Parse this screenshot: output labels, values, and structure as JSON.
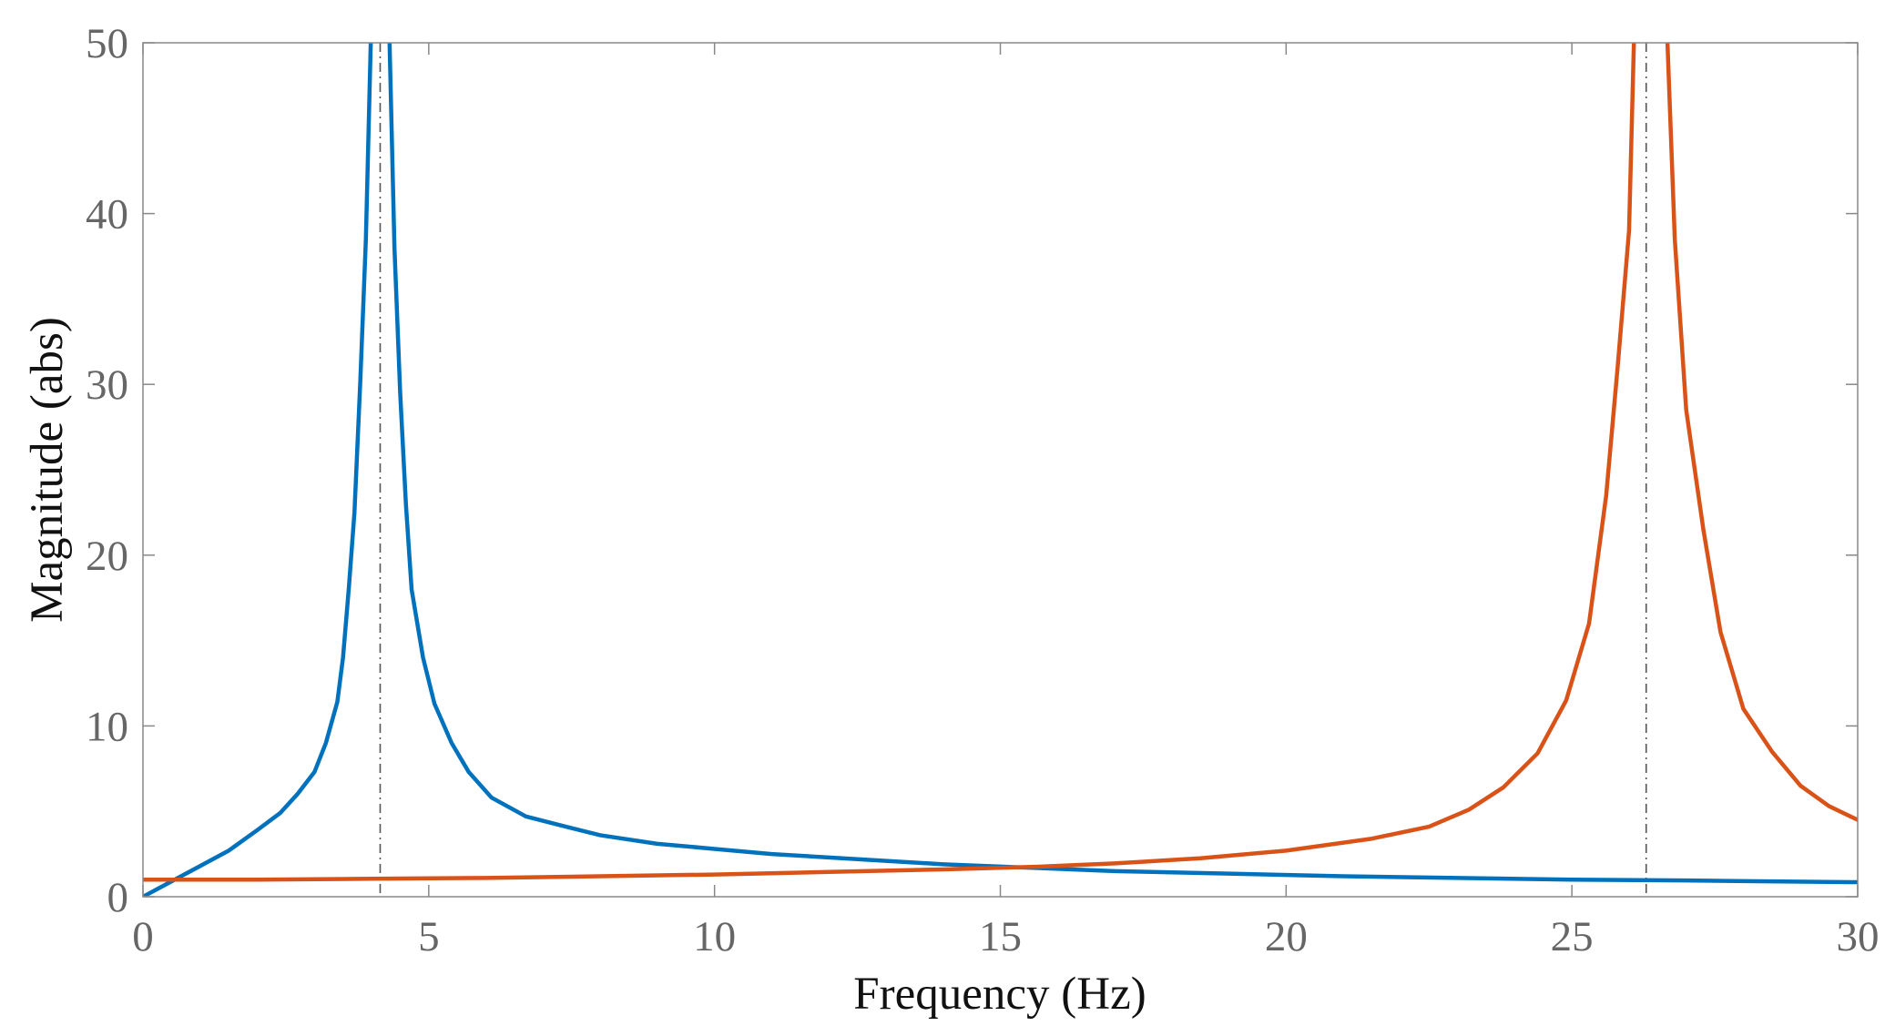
{
  "chart_data": {
    "type": "line",
    "title": "",
    "xlabel": "Frequency  (Hz)",
    "ylabel": "Magnitude (abs)",
    "xlim": [
      0,
      30
    ],
    "ylim": [
      0,
      50
    ],
    "xticks": [
      0,
      5,
      10,
      15,
      20,
      25,
      30
    ],
    "yticks": [
      0,
      10,
      20,
      30,
      40,
      50
    ],
    "grid": false,
    "legend": "none",
    "series": [
      {
        "color": "#0072BD",
        "x": [
          0,
          0.5,
          1.0,
          1.5,
          2.0,
          2.4,
          2.7,
          3.0,
          3.2,
          3.4,
          3.5,
          3.6,
          3.7,
          3.8,
          3.9,
          4.0,
          4.3,
          4.4,
          4.5,
          4.6,
          4.7,
          4.9,
          5.1,
          5.4,
          5.7,
          6.1,
          6.7,
          7.4,
          8.0,
          9.0,
          10.0,
          11.0,
          12.5,
          14.0,
          15.5,
          17.0,
          19.0,
          21.0,
          23.0,
          25.0,
          27.0,
          30.0
        ],
        "y": [
          0,
          0.9,
          1.8,
          2.7,
          3.9,
          4.9,
          6.0,
          7.3,
          9.0,
          11.4,
          14.0,
          18.0,
          22.5,
          30.0,
          38.5,
          52.0,
          52.0,
          38.0,
          29.5,
          23.0,
          18.0,
          14.0,
          11.3,
          9.0,
          7.3,
          5.8,
          4.7,
          4.1,
          3.6,
          3.1,
          2.8,
          2.5,
          2.2,
          1.9,
          1.7,
          1.5,
          1.35,
          1.2,
          1.1,
          1.0,
          0.95,
          0.85
        ]
      },
      {
        "color": "#D95319",
        "x": [
          0,
          2.0,
          4.0,
          6.0,
          8.0,
          10.0,
          12.0,
          14.0,
          15.6,
          17.0,
          18.5,
          20.0,
          21.5,
          22.5,
          23.2,
          23.8,
          24.4,
          24.9,
          25.3,
          25.6,
          25.8,
          26.0,
          26.1,
          26.65,
          26.8,
          27.0,
          27.3,
          27.6,
          28.0,
          28.5,
          29.0,
          29.5,
          30.0
        ],
        "y": [
          1.0,
          1.0,
          1.05,
          1.1,
          1.2,
          1.3,
          1.45,
          1.6,
          1.75,
          1.95,
          2.25,
          2.7,
          3.4,
          4.1,
          5.1,
          6.4,
          8.4,
          11.5,
          16.0,
          23.5,
          31.0,
          39.0,
          52.0,
          52.0,
          38.5,
          28.5,
          21.5,
          15.5,
          11.0,
          8.5,
          6.5,
          5.3,
          4.5
        ]
      }
    ],
    "reference_lines": {
      "color": "#555555",
      "style": "dash-dot",
      "x": [
        4.15,
        26.3
      ]
    }
  }
}
